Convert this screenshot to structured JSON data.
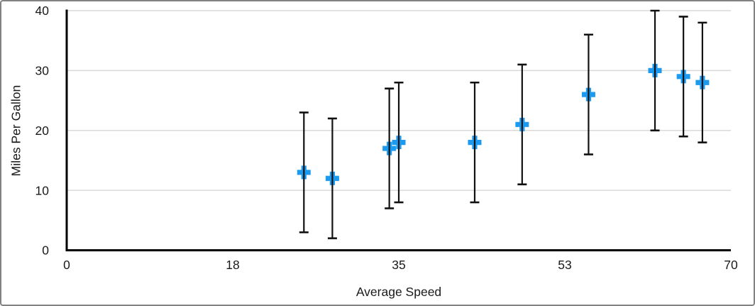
{
  "window": {
    "background": "#ffffff",
    "border_color": "#828282"
  },
  "chart_data": {
    "type": "scatter",
    "xlabel": "Average Speed",
    "ylabel": "Miles Per Gallon",
    "xlim": [
      0,
      70
    ],
    "ylim": [
      0,
      40
    ],
    "grid": "horizontal-only",
    "legend": "none",
    "x_ticks": [
      {
        "pos": 0,
        "label": "0"
      },
      {
        "pos": 17.5,
        "label": "18"
      },
      {
        "pos": 35,
        "label": "35"
      },
      {
        "pos": 52.5,
        "label": "53"
      },
      {
        "pos": 70,
        "label": "70"
      }
    ],
    "y_ticks": [
      {
        "pos": 0,
        "label": "0"
      },
      {
        "pos": 10,
        "label": "10"
      },
      {
        "pos": 20,
        "label": "20"
      },
      {
        "pos": 30,
        "label": "30"
      },
      {
        "pos": 40,
        "label": "40"
      }
    ],
    "series": [
      {
        "name": "Miles Per Gallon",
        "marker": "plus",
        "points": [
          {
            "x": 25,
            "y": 13
          },
          {
            "x": 28,
            "y": 12
          },
          {
            "x": 34,
            "y": 17
          },
          {
            "x": 35,
            "y": 18
          },
          {
            "x": 43,
            "y": 18
          },
          {
            "x": 48,
            "y": 21
          },
          {
            "x": 55,
            "y": 26
          },
          {
            "x": 62,
            "y": 30
          },
          {
            "x": 65,
            "y": 29
          },
          {
            "x": 67,
            "y": 28
          }
        ],
        "error_bars": {
          "axis": "y",
          "plus": 10,
          "minus": 10
        }
      }
    ],
    "colors": {
      "marker": "#1C9AF0",
      "error_bar": "#111111",
      "axis_line": "#000000",
      "gridline": "#D9D9D9",
      "tick_label": "#1A1A1A",
      "axis_title": "#1A1A1A"
    }
  }
}
